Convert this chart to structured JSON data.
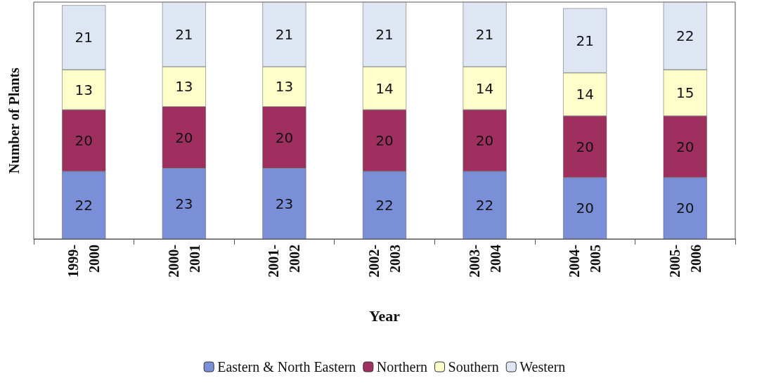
{
  "chart_data": {
    "type": "bar",
    "stacked": true,
    "xlabel": "Year",
    "ylabel": "Number of Plants",
    "categories": [
      "1999-2000",
      "2000-2001",
      "2001-2002",
      "2002-2003",
      "2003-2004",
      "2004-2005",
      "2005-2006"
    ],
    "series": [
      {
        "name": "Eastern & North Eastern",
        "color": "#7b8fd8",
        "values": [
          22,
          23,
          23,
          22,
          22,
          20,
          20
        ]
      },
      {
        "name": "Northern",
        "color": "#9e2f5e",
        "values": [
          20,
          20,
          20,
          20,
          20,
          20,
          20
        ]
      },
      {
        "name": "Southern",
        "color": "#ffffcc",
        "values": [
          13,
          13,
          13,
          14,
          14,
          14,
          15
        ]
      },
      {
        "name": "Western",
        "color": "#dde6f2",
        "values": [
          21,
          21,
          21,
          21,
          21,
          21,
          22
        ]
      }
    ],
    "data_labels": true,
    "legend": "bottom",
    "grid": false
  }
}
